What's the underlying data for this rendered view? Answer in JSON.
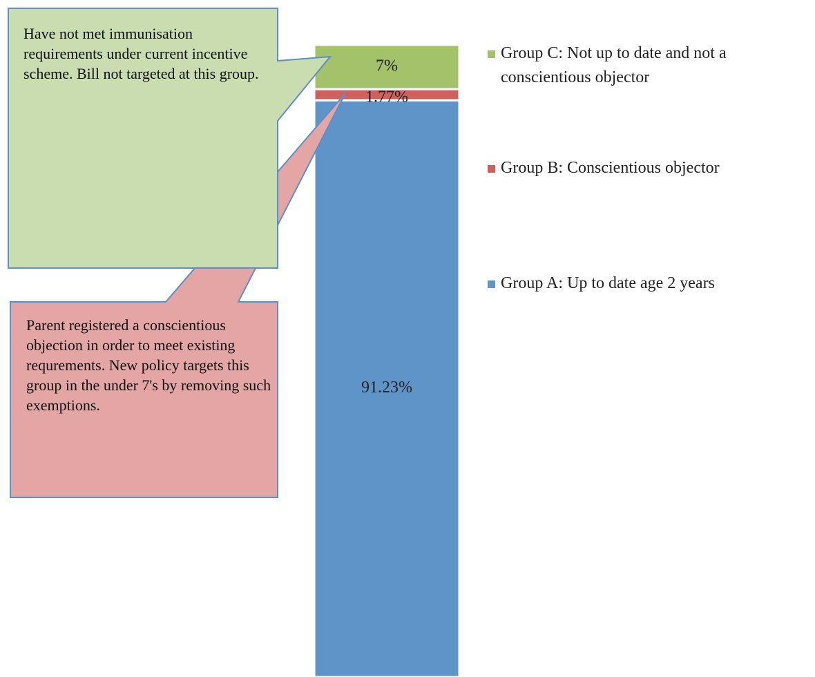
{
  "chart_data": {
    "type": "bar",
    "stacked": true,
    "categories": [
      null
    ],
    "ylim": [
      0,
      100
    ],
    "series": [
      {
        "name": "Group A: Up to date age 2 years",
        "color": "#5f94c8",
        "values": [
          91.23
        ],
        "value_labels": [
          "91.23%"
        ]
      },
      {
        "name": "Group B: Conscientious objector",
        "color": "#d0605d",
        "values": [
          1.77
        ],
        "value_labels": [
          "1.77%"
        ]
      },
      {
        "name": "Group C: Not up to date and not a conscientious objector",
        "color": "#a3c26a",
        "values": [
          7
        ],
        "value_labels": [
          "7%"
        ]
      }
    ],
    "legend": "right",
    "annotations": [
      "Have not met immunisation requirements under current incentive scheme. Bill not targeted at this group.",
      "Parent registered a conscientious objection in order to meet existing requrements. New policy targets this group in the under 7's by removing such exemptions."
    ]
  }
}
